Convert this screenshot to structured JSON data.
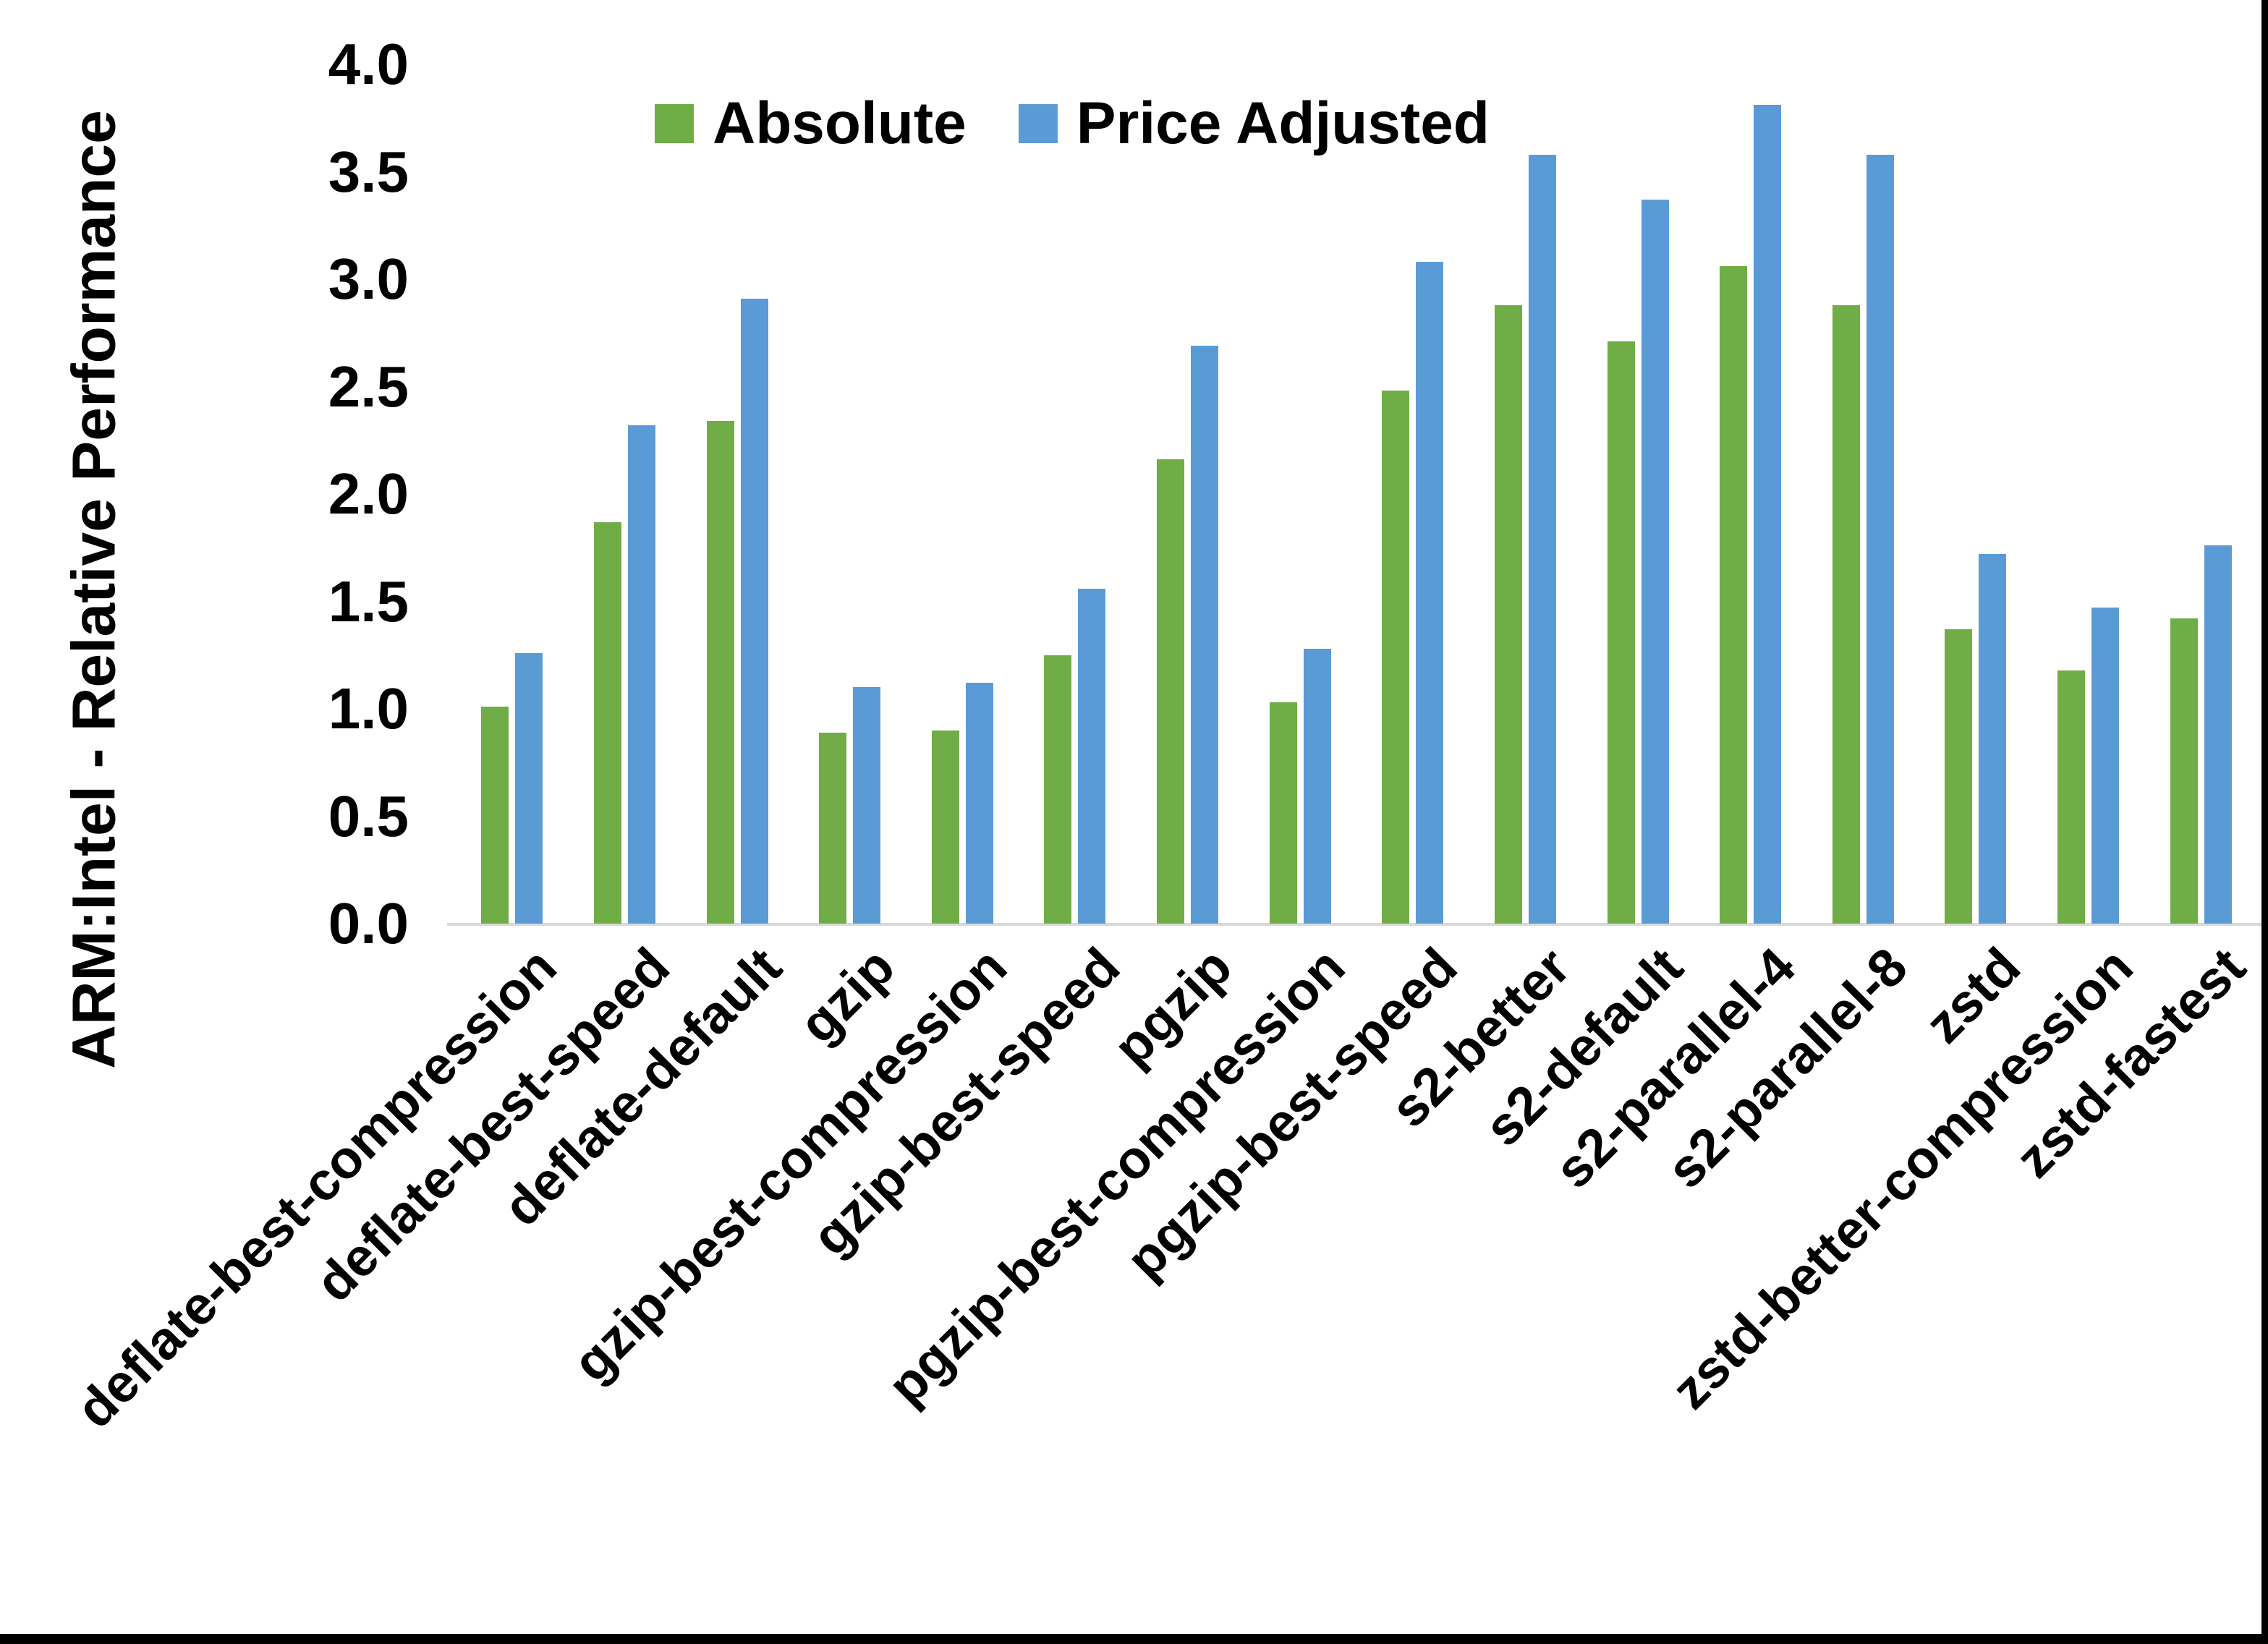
{
  "chart_data": {
    "type": "bar",
    "title": "",
    "ylabel": "ARM:Intel - Relative Performance",
    "xlabel": "",
    "ylim": [
      0.0,
      4.0
    ],
    "ytick_interval": 0.5,
    "ytick_labels": [
      "0.0",
      "0.5",
      "1.0",
      "1.5",
      "2.0",
      "2.5",
      "3.0",
      "3.5",
      "4.0"
    ],
    "grid": false,
    "legend_position": "top-center-inside",
    "categories": [
      "deflate-best-compression",
      "deflate-best-speed",
      "deflate-default",
      "gzip",
      "gzip-best-compression",
      "gzip-best-speed",
      "pgzip",
      "pgzip-best-compression",
      "pgzip-best-speed",
      "s2-better",
      "s2-default",
      "s2-parallel-4",
      "s2-parallel-8",
      "zstd",
      "zstd-better-compression",
      "zstd-fastest"
    ],
    "series": [
      {
        "name": "Absolute",
        "color": "#70AD47",
        "values": [
          1.01,
          1.87,
          2.34,
          0.89,
          0.9,
          1.25,
          2.16,
          1.03,
          2.48,
          2.88,
          2.71,
          3.06,
          2.88,
          1.37,
          1.18,
          1.42
        ]
      },
      {
        "name": "Price Adjusted",
        "color": "#5B9BD5",
        "values": [
          1.26,
          2.32,
          2.91,
          1.1,
          1.12,
          1.56,
          2.69,
          1.28,
          3.08,
          3.58,
          3.37,
          3.81,
          3.58,
          1.72,
          1.47,
          1.76
        ]
      }
    ]
  },
  "styling": {
    "background": "#FFFFFF",
    "text_color": "#000000",
    "axis_line_color": "#D9D9D9",
    "frame_border_color": "#000000"
  }
}
